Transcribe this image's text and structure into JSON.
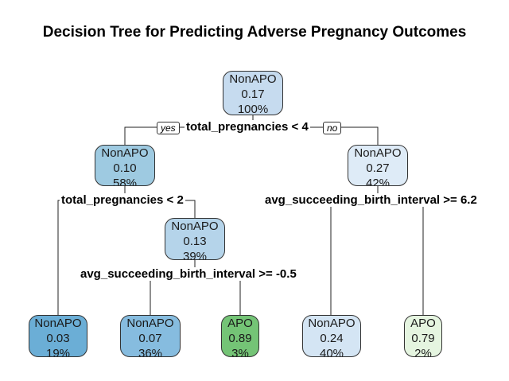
{
  "title": "Decision Tree for Predicting Adverse Pregnancy Outcomes",
  "branch_labels": {
    "yes": "yes",
    "no": "no"
  },
  "splits": {
    "root": "total_pregnancies < 4",
    "left": "total_pregnancies < 2",
    "left_right": "avg_succeeding_birth_interval >= -0.5",
    "right": "avg_succeeding_birth_interval >= 6.2"
  },
  "nodes": {
    "root": {
      "cls": "NonAPO",
      "prob": "0.17",
      "pct": "100%",
      "color": "#c6dbef"
    },
    "n2": {
      "cls": "NonAPO",
      "prob": "0.10",
      "pct": "58%",
      "color": "#9ecae1"
    },
    "n3": {
      "cls": "NonAPO",
      "prob": "0.27",
      "pct": "42%",
      "color": "#deebf7"
    },
    "n5": {
      "cls": "NonAPO",
      "prob": "0.13",
      "pct": "39%",
      "color": "#b5d4ea"
    },
    "leaf1": {
      "cls": "NonAPO",
      "prob": "0.03",
      "pct": "19%",
      "color": "#6baed6"
    },
    "leaf2": {
      "cls": "NonAPO",
      "prob": "0.07",
      "pct": "36%",
      "color": "#86bcdf"
    },
    "leaf3": {
      "cls": "APO",
      "prob": "0.89",
      "pct": "3%",
      "color": "#74c476"
    },
    "leaf4": {
      "cls": "NonAPO",
      "prob": "0.24",
      "pct": "40%",
      "color": "#d4e5f4"
    },
    "leaf5": {
      "cls": "APO",
      "prob": "0.79",
      "pct": "2%",
      "color": "#e5f5e0"
    }
  }
}
